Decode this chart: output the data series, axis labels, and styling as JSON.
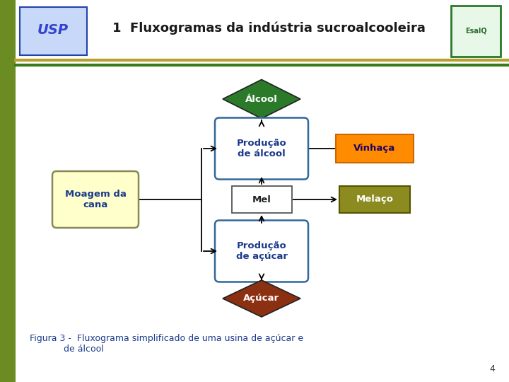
{
  "title": "1  Fluxogramas da indústria sucroalcooleira",
  "title_fontsize": 13,
  "title_color": "#1a1a1a",
  "bg_color": "#ffffff",
  "content_bg": "#ffffff",
  "left_bar_color": "#6b8c23",
  "olive_line_color": "#b8a030",
  "green_line_color": "#3a7a1e",
  "alcool_diamond_color": "#2a7a2a",
  "acucar_diamond_color": "#8b3010",
  "prod_box_color": "#ffffff",
  "prod_box_edge": "#336699",
  "mel_box_color": "#ffffff",
  "mel_box_edge": "#555555",
  "moagem_box_color": "#ffffcc",
  "moagem_box_edge": "#888855",
  "vinhaca_bg": "#ff8c00",
  "vinhaca_text": "#220066",
  "melaco_bg": "#8b8b20",
  "melaco_text": "#ffffff",
  "caption_color": "#1a3a8c",
  "caption": "Figura 3 -  Fluxograma simplificado de uma usina de açúcar e\n            de álcool",
  "page_num": "4",
  "arrow_color": "#000000"
}
